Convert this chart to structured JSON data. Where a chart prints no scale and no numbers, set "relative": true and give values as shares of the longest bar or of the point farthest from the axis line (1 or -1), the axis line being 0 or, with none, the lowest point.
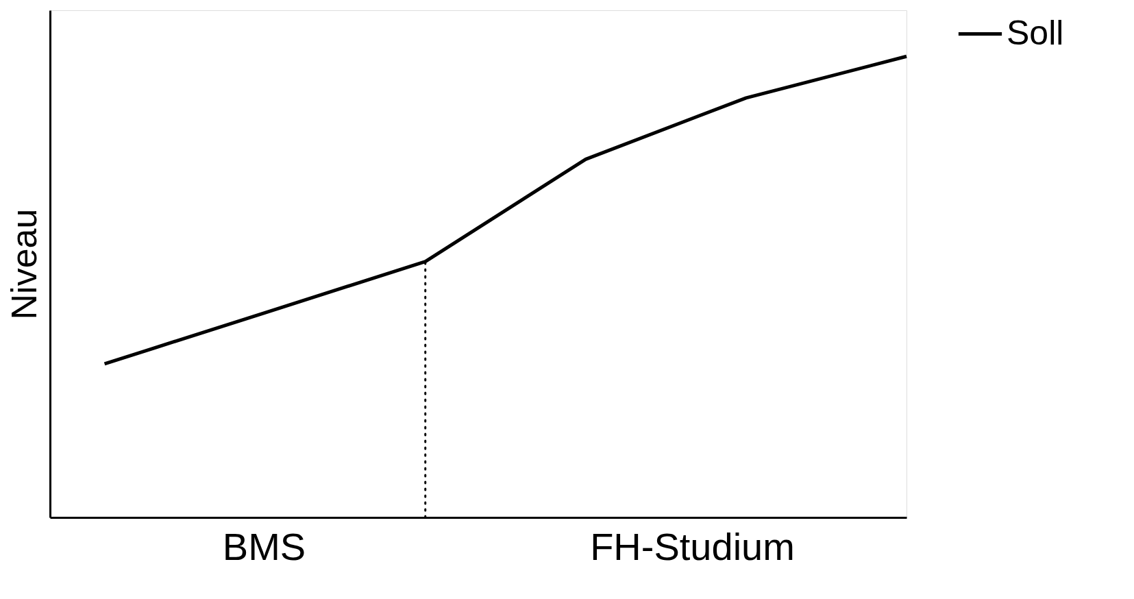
{
  "chart_data": {
    "type": "line",
    "ylabel": "Niveau",
    "relative": true,
    "tick_labels": false,
    "grid": false,
    "legend": "top right",
    "line_style": "solid",
    "marker": "none",
    "categories": [
      null,
      null,
      null,
      null,
      null,
      null
    ],
    "series": [
      {
        "name": "Soll",
        "color": "#000000",
        "values": [
          0.333,
          0.444,
          0.555,
          0.777,
          0.91,
          1
        ]
      }
    ],
    "annotations": [
      "BMS",
      "FH-Studium"
    ]
  }
}
